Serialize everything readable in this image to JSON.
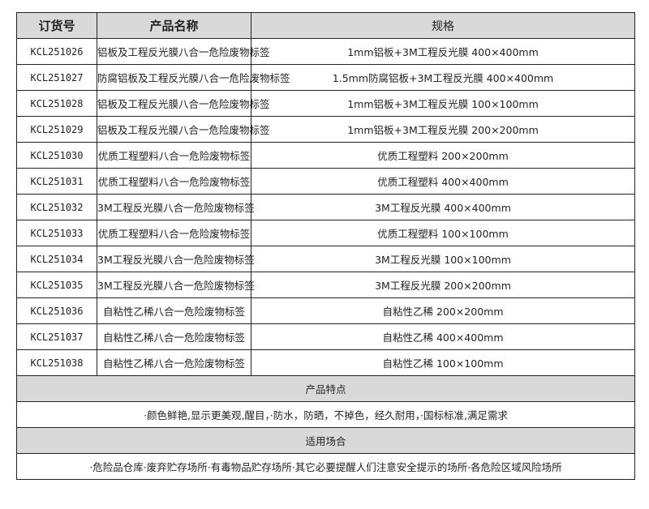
{
  "headers": [
    "订货号",
    "产品名称",
    "规格"
  ],
  "rows": [
    [
      "KCL251026",
      "铝板及工程反光膜八合一危险废物标签",
      "1mm铝板+3M工程反光膜 400×400mm"
    ],
    [
      "KCL251027",
      "防腐铝板及工程反光膜八合一危险废物标签",
      "1.5mm防腐铝板+3M工程反光膜 400×400mm"
    ],
    [
      "KCL251028",
      "铝板及工程反光膜八合一危险废物标签",
      "1mm铝板+3M工程反光膜 100×100mm"
    ],
    [
      "KCL251029",
      "铝板及工程反光膜八合一危险废物标签",
      "1mm铝板+3M工程反光膜 200×200mm"
    ],
    [
      "KCL251030",
      "优质工程塑料八合一危险废物标签",
      "优质工程塑料 200×200mm"
    ],
    [
      "KCL251031",
      "优质工程塑料八合一危险废物标签",
      "优质工程塑料 400×400mm"
    ],
    [
      "KCL251032",
      "3M工程反光膜八合一危险废物标签",
      "3M工程反光膜 400×400mm"
    ],
    [
      "KCL251033",
      "优质工程塑料八合一危险废物标签",
      "优质工程塑料 100×100mm"
    ],
    [
      "KCL251034",
      "3M工程反光膜八合一危险废物标签",
      "3M工程反光膜 100×100mm"
    ],
    [
      "KCL251035",
      "3M工程反光膜八合一危险废物标签",
      "3M工程反光膜 200×200mm"
    ],
    [
      "KCL251036",
      "自粘性乙稀八合一危险废物标签",
      "自粘性乙稀 200×200mm"
    ],
    [
      "KCL251037",
      "自粘性乙稀八合一危险废物标签",
      "自粘性乙稀 400×400mm"
    ],
    [
      "KCL251038",
      "自粘性乙稀八合一危险废物标签",
      "自粘性乙稀 100×100mm"
    ]
  ],
  "features": {
    "title": "产品特点",
    "text": "·颜色鲜艳,显示更美观,醒目，·防水，防晒，不掉色，经久耐用，·国标标准,满足需求"
  },
  "usage": {
    "title": "适用场合",
    "text": "·危险品仓库·废弃贮存场所·有毒物品贮存场所·其它必要提醒人们注意安全提示的场所·各危险区域风险场所"
  }
}
